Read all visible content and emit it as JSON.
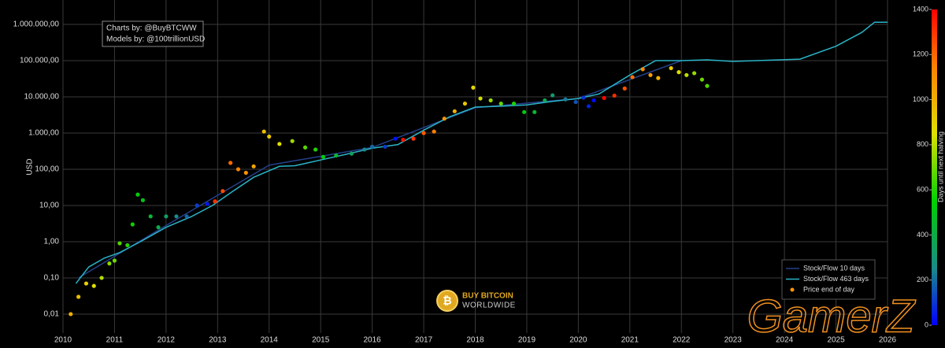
{
  "chart_data": {
    "type": "scatter",
    "y_label": "USD",
    "annotation": [
      "Charts by: @BuyBTCWW",
      "Models by: @100trillionUSD"
    ],
    "watermark": [
      "BUY BITCOIN",
      "WORLDWIDE"
    ],
    "overlay_text": "GamerZ",
    "log_y": true,
    "grid": true,
    "legend": "bottom right",
    "xlim": [
      2010,
      2026
    ],
    "xticks": [
      2010,
      2011,
      2012,
      2013,
      2014,
      2015,
      2016,
      2017,
      2018,
      2019,
      2020,
      2021,
      2022,
      2023,
      2024,
      2025,
      2026
    ],
    "ylim": [
      0.003,
      4720000
    ],
    "yticks": [
      {
        "value": 0.01,
        "label": "0,01"
      },
      {
        "value": 0.1,
        "label": "0,10"
      },
      {
        "value": 1,
        "label": "1,00"
      },
      {
        "value": 10,
        "label": "10,00"
      },
      {
        "value": 100,
        "label": "100,00"
      },
      {
        "value": 1000,
        "label": "1.000,00"
      },
      {
        "value": 10000,
        "label": "10.000,00"
      },
      {
        "value": 100000,
        "label": "100.000,00"
      },
      {
        "value": 1000000,
        "label": "1.000.000,00"
      }
    ],
    "colorbar": {
      "label": "Days until next halving",
      "lim": [
        0,
        1400
      ],
      "ticks": [
        0,
        200,
        400,
        600,
        800,
        1000,
        1200,
        1400
      ],
      "colorscale": [
        [
          0,
          "#0000ff"
        ],
        [
          250,
          "#1a8a8a"
        ],
        [
          550,
          "#00d000"
        ],
        [
          850,
          "#e0e000"
        ],
        [
          1150,
          "#ff8000"
        ],
        [
          1400,
          "#ff0000"
        ]
      ]
    },
    "series": [
      {
        "name": "Stock/Flow 10 days",
        "type": "line",
        "color": "#24408a",
        "x": [
          2010.3,
          2012,
          2014,
          2016,
          2018,
          2020,
          2022
        ],
        "values": [
          0.1,
          2.8,
          130,
          400,
          5000,
          9000,
          100000
        ]
      },
      {
        "name": "Stock/Flow 463 days",
        "type": "line",
        "color": "#2ab4c8",
        "x": [
          2010.25,
          2010.5,
          2010.8,
          2011.1,
          2011.5,
          2012.0,
          2012.5,
          2012.9,
          2013.3,
          2013.7,
          2014.2,
          2014.5,
          2015,
          2015.5,
          2016,
          2016.5,
          2017,
          2017.5,
          2018,
          2018.5,
          2019,
          2019.5,
          2020,
          2020.4,
          2021,
          2021.5,
          2022,
          2022.5,
          2023,
          2024.3,
          2025,
          2025.5,
          2025.75,
          2026
        ],
        "values": [
          0.07,
          0.2,
          0.35,
          0.5,
          1,
          2.5,
          5,
          10,
          25,
          60,
          120,
          125,
          180,
          260,
          380,
          480,
          1200,
          2800,
          5200,
          5500,
          6000,
          7500,
          9000,
          12000,
          40000,
          100000,
          100000,
          105000,
          95000,
          110000,
          250000,
          600000,
          1150000,
          1150000
        ]
      },
      {
        "name": "Price end of day",
        "type": "scatter",
        "color": "#ff9900",
        "x": [
          2010.15,
          2010.3,
          2010.45,
          2010.6,
          2010.75,
          2010.9,
          2011.0,
          2011.1,
          2011.25,
          2011.35,
          2011.45,
          2011.55,
          2011.7,
          2011.85,
          2012.0,
          2012.2,
          2012.4,
          2012.6,
          2012.8,
          2012.95,
          2013.1,
          2013.25,
          2013.4,
          2013.55,
          2013.7,
          2013.9,
          2014.0,
          2014.2,
          2014.45,
          2014.7,
          2014.9,
          2015.05,
          2015.3,
          2015.6,
          2015.85,
          2016.0,
          2016.25,
          2016.45,
          2016.6,
          2016.8,
          2017.0,
          2017.2,
          2017.4,
          2017.6,
          2017.8,
          2017.96,
          2018.1,
          2018.3,
          2018.5,
          2018.75,
          2018.95,
          2019.15,
          2019.35,
          2019.5,
          2019.75,
          2019.95,
          2020.1,
          2020.2,
          2020.3,
          2020.5,
          2020.7,
          2020.9,
          2021.05,
          2021.25,
          2021.4,
          2021.55,
          2021.8,
          2021.95,
          2022.1,
          2022.25,
          2022.4,
          2022.5
        ],
        "values": [
          0.01,
          0.03,
          0.07,
          0.06,
          0.1,
          0.25,
          0.3,
          0.9,
          0.8,
          3,
          20,
          14,
          5,
          2.5,
          5,
          5,
          5,
          10,
          11,
          13,
          25,
          150,
          100,
          80,
          120,
          1100,
          800,
          500,
          600,
          400,
          350,
          220,
          240,
          270,
          350,
          420,
          420,
          700,
          650,
          700,
          1000,
          1100,
          2500,
          4000,
          6500,
          18000,
          9000,
          8000,
          6500,
          6500,
          3800,
          3800,
          8000,
          11000,
          8500,
          7200,
          9500,
          5500,
          8000,
          9300,
          10800,
          17000,
          35000,
          58000,
          40000,
          33000,
          62000,
          48000,
          40000,
          45000,
          30000,
          20000
        ],
        "colors": [
          1007,
          953,
          898,
          843,
          788,
          734,
          697,
          661,
          606,
          569,
          533,
          496,
          442,
          387,
          332,
          259,
          186,
          113,
          40,
          1307,
          1252,
          1197,
          1142,
          1088,
          1033,
          960,
          923,
          850,
          759,
          668,
          595,
          540,
          449,
          339,
          248,
          193,
          102,
          29,
          1372,
          1299,
          1226,
          1153,
          1080,
          1007,
          934,
          876,
          825,
          752,
          679,
          587,
          514,
          441,
          369,
          314,
          223,
          150,
          95,
          58,
          22,
          1387,
          1314,
          1241,
          1186,
          1113,
          1059,
          1004,
          913,
          858,
          803,
          748,
          694,
          657
        ]
      }
    ]
  }
}
